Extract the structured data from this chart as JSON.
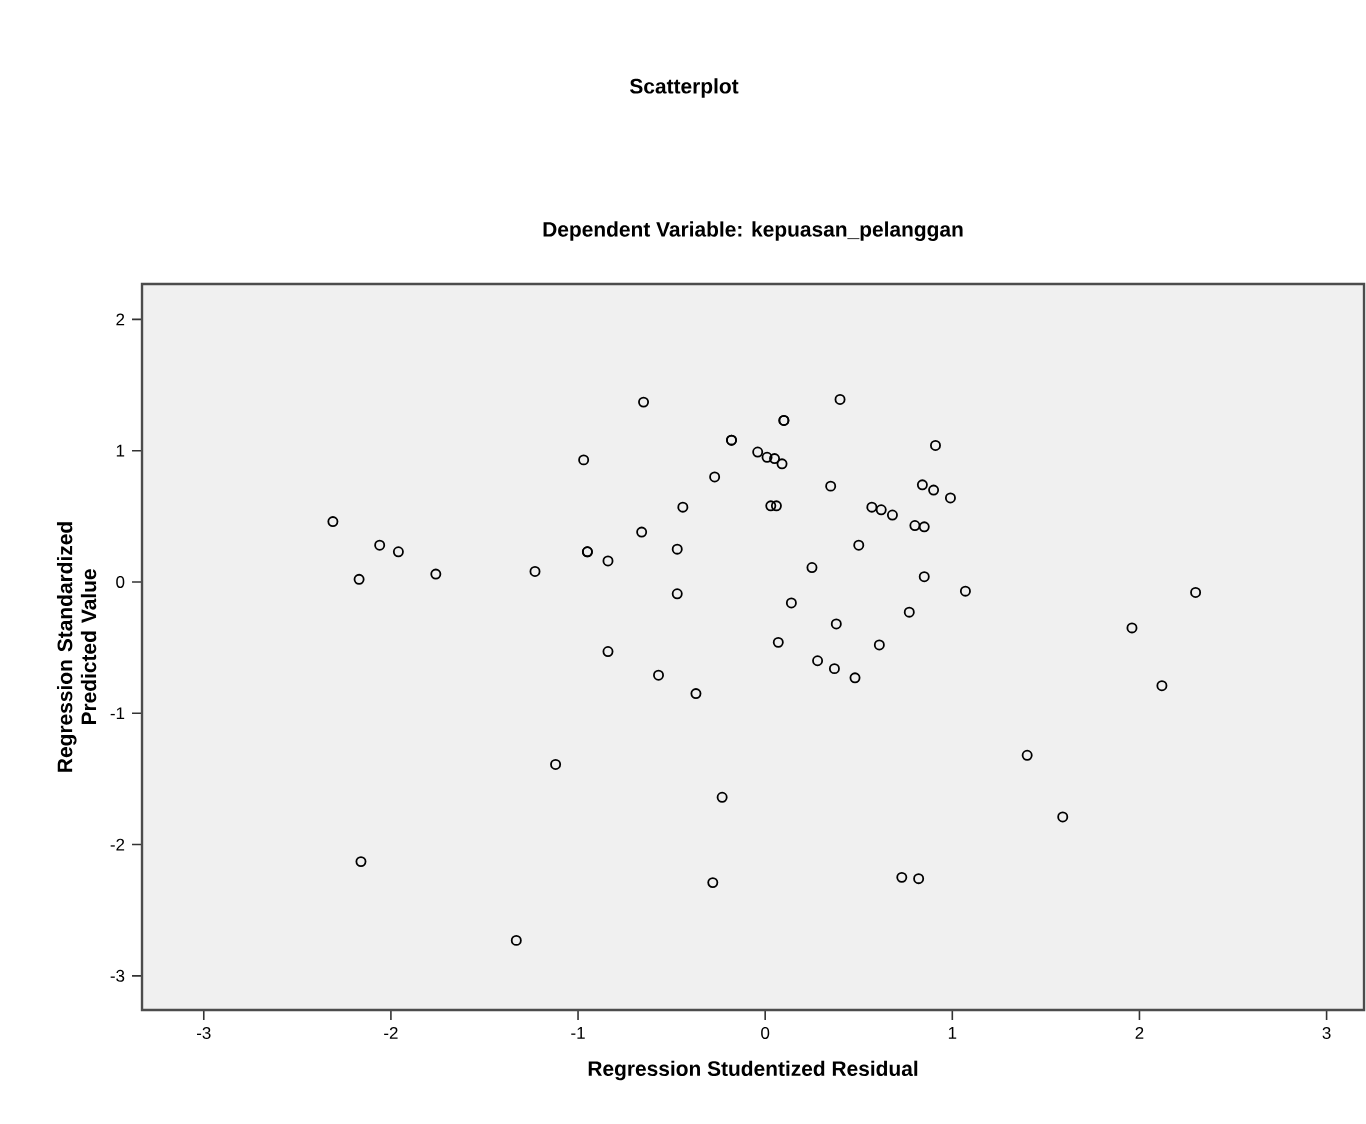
{
  "chart_data": {
    "type": "scatter",
    "title": "Scatterplot",
    "subtitle": "Dependent Variable: kepuasan_pelanggan",
    "xlabel": "Regression Studentized Residual",
    "ylabel": "Regression Standardized Predicted Value",
    "xlim": [
      -3.33,
      3.2
    ],
    "ylim": [
      -3.26,
      2.27
    ],
    "xticks": [
      -3,
      -2,
      -1,
      0,
      1,
      2,
      3
    ],
    "yticks": [
      -3,
      -2,
      -1,
      0,
      1,
      2
    ],
    "grid": false,
    "marker": "circle",
    "series": [
      {
        "color": "#000000",
        "x": [
          -2.31,
          -2.17,
          -2.06,
          -1.96,
          -1.76,
          -1.23,
          -0.97,
          -0.95,
          -0.95,
          -0.84,
          -0.84,
          -0.65,
          -0.66,
          -0.47,
          -0.47,
          -0.44,
          -0.27,
          -0.18,
          -0.18,
          -0.04,
          0.01,
          0.05,
          0.09,
          0.4,
          0.1,
          0.1,
          0.91,
          0.03,
          0.06,
          0.35,
          0.84,
          0.9,
          0.99,
          0.57,
          0.62,
          0.68,
          0.8,
          0.85,
          0.5,
          0.25,
          0.85,
          1.07,
          0.14,
          2.3,
          1.96,
          0.77,
          0.38,
          0.07,
          0.61,
          0.28,
          0.37,
          0.48,
          2.12,
          1.4,
          1.59,
          0.73,
          0.82,
          -0.57,
          -0.37,
          -1.12,
          -0.23,
          -2.16,
          -0.28,
          -1.33
        ],
        "values": [
          0.46,
          0.02,
          0.28,
          0.23,
          0.06,
          0.08,
          0.93,
          0.23,
          0.23,
          0.16,
          -0.53,
          1.37,
          0.38,
          0.25,
          -0.09,
          0.57,
          0.8,
          1.08,
          1.08,
          0.99,
          0.95,
          0.94,
          0.9,
          1.39,
          1.23,
          1.23,
          1.04,
          0.58,
          0.58,
          0.73,
          0.74,
          0.7,
          0.64,
          0.57,
          0.55,
          0.51,
          0.43,
          0.42,
          0.28,
          0.11,
          0.04,
          -0.07,
          -0.16,
          -0.08,
          -0.35,
          -0.23,
          -0.32,
          -0.46,
          -0.48,
          -0.6,
          -0.66,
          -0.73,
          -0.79,
          -1.32,
          -1.79,
          -2.25,
          -2.26,
          -0.71,
          -0.85,
          -1.39,
          -1.64,
          -2.13,
          -2.29,
          -2.73
        ]
      }
    ]
  }
}
